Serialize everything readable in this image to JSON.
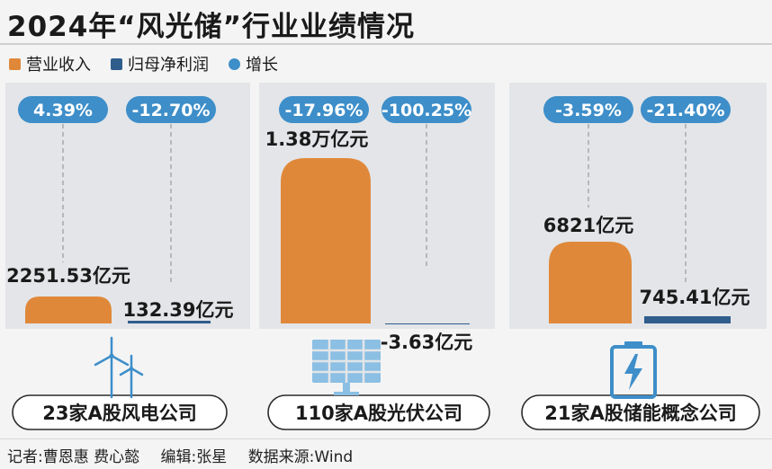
{
  "title": "2024年“风光储”行业业绩情况",
  "legend": [
    {
      "label": "营业收入",
      "color": "#e0883a",
      "shape": "square"
    },
    {
      "label": "归母净利润",
      "color": "#2f5d8c",
      "shape": "square"
    },
    {
      "label": "增长",
      "color": "#3d8ec9",
      "shape": "dot"
    }
  ],
  "footer": {
    "reporter": "记者:曹恩惠  费心懿",
    "editor": "编辑:张星",
    "source": "数据来源:Wind"
  },
  "colors": {
    "revenue": "#e0883a",
    "profit": "#2f5d8c",
    "growth": "#3d8ec9",
    "panel": "#e3e5e8"
  },
  "chart_data": {
    "type": "bar",
    "categories": [
      "23家A股风电公司",
      "110家A股光伏公司",
      "21家A股储能概念公司"
    ],
    "series": [
      {
        "name": "营业收入",
        "values": [
          2251.53,
          13800,
          6821
        ],
        "labels": [
          "2251.53亿元",
          "1.38万亿元",
          "6821亿元"
        ],
        "growth": [
          "4.39%",
          "-17.96%",
          "-3.59%"
        ]
      },
      {
        "name": "归母净利润",
        "values": [
          132.39,
          -3.63,
          745.41
        ],
        "labels": [
          "132.39亿元",
          "-3.63亿元",
          "745.41亿元"
        ],
        "growth": [
          "-12.70%",
          "-100.25%",
          "-21.40%"
        ]
      }
    ],
    "icons": [
      "wind-turbine-icon",
      "solar-panel-icon",
      "battery-storage-icon"
    ]
  }
}
